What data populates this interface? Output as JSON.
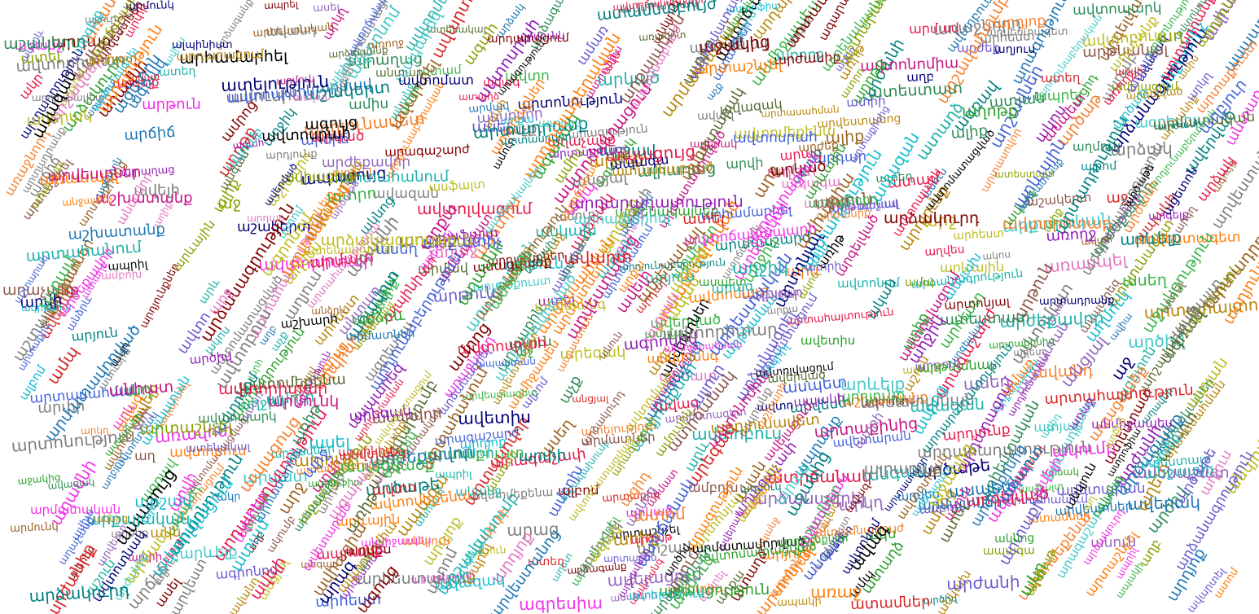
{
  "cloud": {
    "palette": [
      "#e6194b",
      "#3cb44b",
      "#4363d8",
      "#f58231",
      "#911eb4",
      "#46c8c8",
      "#f032e6",
      "#8aa000",
      "#e377c2",
      "#008080",
      "#9a6324",
      "#800000",
      "#2e8b57",
      "#000075",
      "#808080",
      "#1f77b4",
      "#d62728",
      "#9467bd",
      "#17becf",
      "#bcbd22",
      "#ff7f0e",
      "#2ca02c",
      "#8c564b",
      "#7f7f7f",
      "#000000",
      "#b8860b",
      "#6a5acd",
      "#c71585",
      "#20b2aa",
      "#556b2f"
    ],
    "words": [
      "արվեստ",
      "արշավ",
      "արմատ",
      "արդյունք",
      "արդյունքներ",
      "արագություն",
      "արագ",
      "արժանի",
      "արդար",
      "արձագանք",
      "արձակ",
      "արկած",
      "արմատներ",
      "արտահայտություն",
      "արտադրություն",
      "արդյունաբերություն",
      "արվեստագետ",
      "արշավախումբ",
      "արծաթ",
      "արծիվ",
      "արհեստ",
      "արյուն",
      "արև",
      "արևելք",
      "արտաքին",
      "արտոնություն",
      "արգելք",
      "արժանիք",
      "արժեք",
      "արքա",
      "արքայական",
      "արմավ",
      "արեգակ",
      "արթուն",
      "արագաշարժ",
      "արդյոք",
      "արդարադատություն",
      "արձանագրություն",
      "արձանագրել",
      "արտասահման",
      "արտաշնչել",
      "արտասովոր",
      "արվեստանոց",
      "արհամարհել",
      "արտաքինից",
      "արվի",
      "արևային",
      "արթնանալ",
      "արհեստական",
      "արտաքուստ",
      "արմատավորված",
      "արձակուրդ",
      "արճիճ",
      "արկղ",
      "արջ",
      "արփի",
      "արմունկ",
      "արծաթե",
      "արմատական",
      "արդարացում",
      "արժեքավոր",
      "արդյունաբերական",
      "արգելված",
      "արդյունավետ",
      "արտադրանք",
      "արվեստներ",
      "արշավներ",
      "արագաչափ",
      "արտահանում",
      "արտոնյալ",
      "ավտո",
      "ավտոմեքենա",
      "ավտոմատ",
      "ավտոբուս",
      "ավտոմատացում",
      "ավտոմատացված",
      "ավտորիտար",
      "ավտոնոմ",
      "ավտոնոմիա",
      "ավտոպարկ",
      "ավտոճանապարհ",
      "ավտոսրահ",
      "ավտոտնակ",
      "ավտոլվացում",
      "ավերակ",
      "ավետիս",
      "ավազ",
      "ավազան",
      "ավարտ",
      "ավելի",
      "ավանդ",
      "ավագ",
      "ատամ",
      "ատամներ",
      "ատենակալ",
      "ատենակալներ",
      "ատելություն",
      "ատլաս",
      "ատոմ",
      "ատրճանակ",
      "ատյան",
      "ատաղձ",
      "ատեստատ",
      "ատել",
      "ատամնաբույժ",
      "աղջիկ",
      "աղբ",
      "աղ",
      "աղոթք",
      "աղմուկ",
      "աղյուս",
      "աղավնի",
      "աղետ",
      "աղբյուր",
      "աղվես",
      "աղիք",
      "աղաչանք",
      "ագռավ",
      "ագահ",
      "ագարակ",
      "ագույց",
      "ագրեսիա",
      "ագրոնոմ",
      "ացետոն",
      "ացիդ",
      "ակումբ",
      "ակնոց",
      "ակոս",
      "ակն",
      "ակր",
      "ականջ",
      "ական",
      "ալիք",
      "ալյուր",
      "ալբոմ",
      "ալրաղաց",
      "ալեհեր",
      "ալպինիստ",
      "ամառ",
      "ամպ",
      "ամուսին",
      "ամուր",
      "ամբոխ",
      "ամիս",
      "ամենաշատ",
      "ամրոց",
      "անուն",
      "անտառ",
      "անձրև",
      "անկյուն",
      "անգամ",
      "անմիջապես",
      "անհատ",
      "անկախ",
      "անսովոր",
      "անցյալ",
      "անջատիչ",
      "անվտանգ",
      "աշխարհ",
      "աշխատանք",
      "աշուն",
      "աշակերտ",
      "աշտարակ",
      "ապագա",
      "ապրանք",
      "ապակի",
      "ապրիլ",
      "ապաստան",
      "ապացույց",
      "ապրել",
      "աջակից",
      "աջ",
      "աչք",
      "աջակցություն",
      "առաջ",
      "առավոտ",
      "առողջ",
      "առիթ",
      "առաջնորդ",
      "առասպել",
      "ասպարեզ",
      "ասեղ",
      "ասպետ",
      "ասել",
      "ասֆալտ",
      "ասացվածք",
      "ավազակ",
      "ավետարան",
      "ավերված",
      "ավիա",
      "ավիացիա",
      "ավելացում",
      "ավարտել",
      "ատրոֆիա",
      "ատեղ",
      "ատրի",
      "ատրո"
    ]
  }
}
